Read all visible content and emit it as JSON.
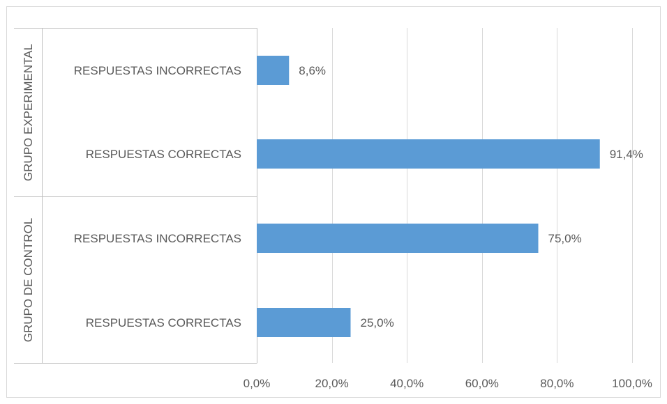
{
  "chart_data": {
    "type": "bar",
    "orientation": "horizontal",
    "title": "",
    "xlabel": "",
    "ylabel": "",
    "xlim": [
      0,
      100
    ],
    "grid": true,
    "legend": "none",
    "bar_color": "#5b9bd5",
    "text_color": "#595959",
    "gridline_color": "#d9d9d9",
    "x_ticks": [
      0,
      20,
      40,
      60,
      80,
      100
    ],
    "x_tick_labels": [
      "0,0%",
      "20,0%",
      "40,0%",
      "60,0%",
      "80,0%",
      "100,0%"
    ],
    "groups": [
      {
        "name": "GRUPO EXPERIMENTAL",
        "categories": [
          "RESPUESTAS INCORRECTAS",
          "RESPUESTAS CORRECTAS"
        ],
        "values": [
          8.6,
          91.4
        ],
        "labels": [
          "8,6%",
          "91,4%"
        ]
      },
      {
        "name": "GRUPO DE CONTROL",
        "categories": [
          "RESPUESTAS INCORRECTAS",
          "RESPUESTAS CORRECTAS"
        ],
        "values": [
          75.0,
          25.0
        ],
        "labels": [
          "75,0%",
          "25,0%"
        ]
      }
    ]
  }
}
